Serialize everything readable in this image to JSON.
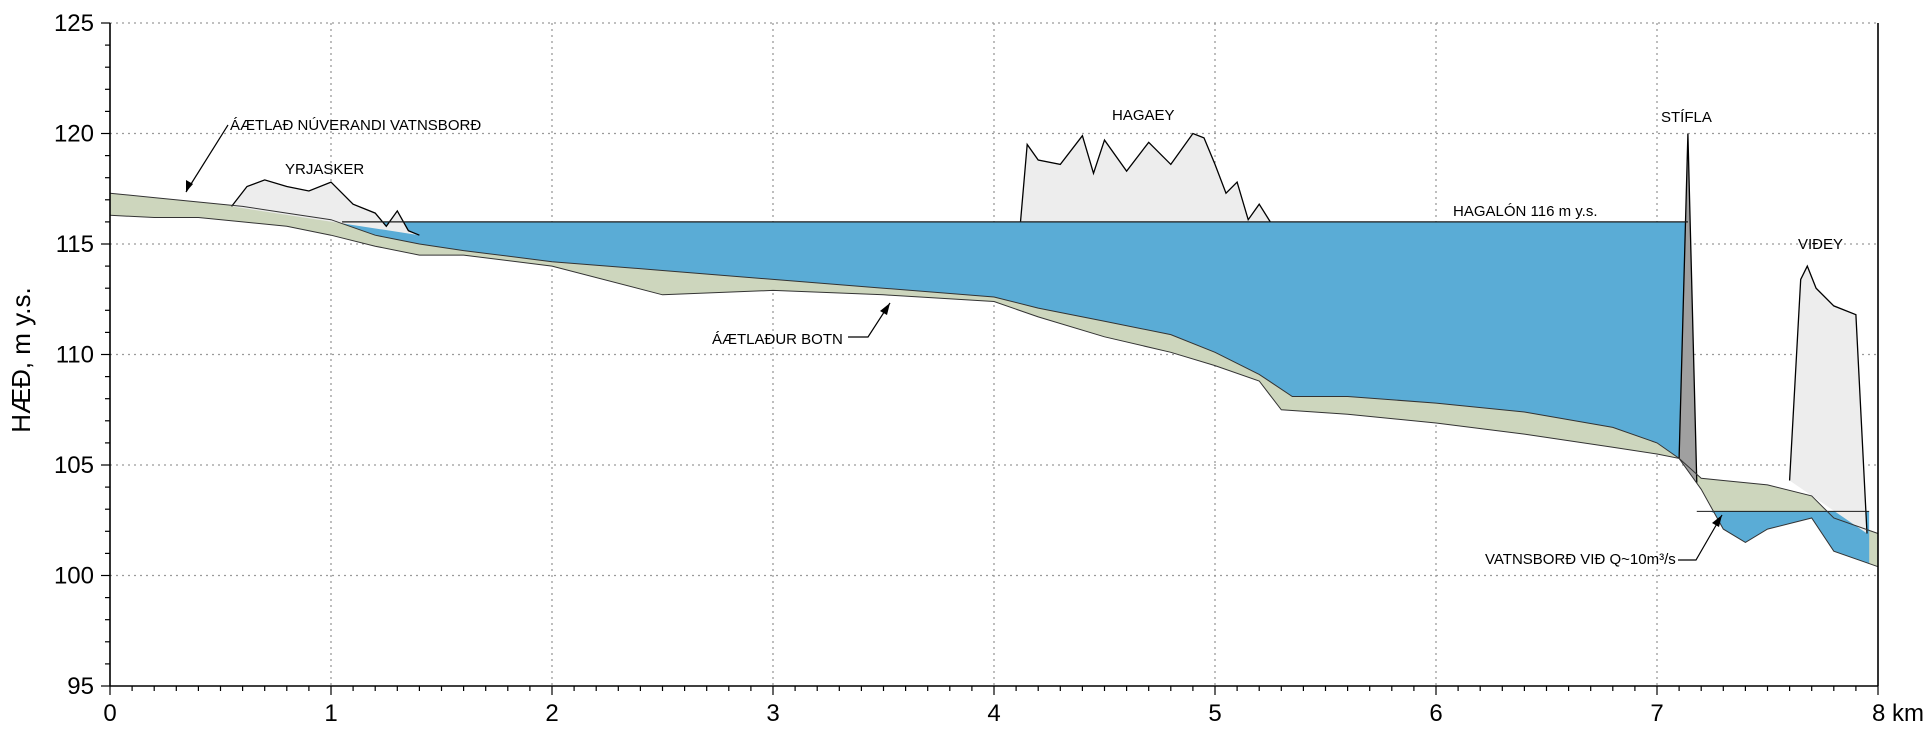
{
  "chart_data": {
    "type": "area",
    "title": "",
    "xlabel": "",
    "ylabel": "HÆÐ, m y.s.",
    "xlim": [
      0,
      8
    ],
    "ylim": [
      95,
      125
    ],
    "x_ticks": [
      0,
      1,
      2,
      3,
      4,
      5,
      6,
      7,
      8
    ],
    "x_tick_labels": [
      "0",
      "1",
      "2",
      "3",
      "4",
      "5",
      "6",
      "7",
      "8 km"
    ],
    "y_ticks": [
      95,
      100,
      105,
      110,
      115,
      120,
      125
    ],
    "y_tick_labels": [
      "95",
      "100",
      "105",
      "110",
      "115",
      "120",
      "125"
    ],
    "grid": true,
    "colors": {
      "reservoir": "#5aacd6",
      "sediment": "#cdd6bd",
      "islands": "#ededed",
      "dam": "#a0a0a0",
      "outline": "#000000"
    },
    "series": [
      {
        "name": "ÁÆTLAÐ NÚVERANDI VATNSBORÐ",
        "x": [
          0,
          0.2,
          0.4,
          0.6,
          0.8,
          1.0,
          1.2,
          1.4,
          1.6,
          2.0,
          2.5,
          3.0,
          3.5,
          4.0,
          4.2,
          4.5,
          4.8,
          5.0,
          5.2,
          5.35,
          5.6,
          6.0,
          6.4,
          6.8,
          7.0,
          7.1,
          7.2,
          7.3,
          7.5,
          7.7,
          7.8,
          8.0
        ],
        "values": [
          117.3,
          117.1,
          116.9,
          116.7,
          116.4,
          116.1,
          115.4,
          115.0,
          114.7,
          114.2,
          113.8,
          113.4,
          113.0,
          112.6,
          112.1,
          111.5,
          110.9,
          110.1,
          109.1,
          108.1,
          108.1,
          107.8,
          107.4,
          106.7,
          106.0,
          105.3,
          104.4,
          104.3,
          104.1,
          103.6,
          102.6,
          101.9
        ]
      },
      {
        "name": "ÁÆTLAÐUR BOTN",
        "x": [
          0,
          0.2,
          0.4,
          0.6,
          0.8,
          1.0,
          1.2,
          1.4,
          1.6,
          2.0,
          2.5,
          3.0,
          3.5,
          4.0,
          4.2,
          4.5,
          4.8,
          5.0,
          5.2,
          5.3,
          5.6,
          6.0,
          6.4,
          6.8,
          7.0,
          7.1,
          7.2,
          7.3,
          7.4,
          7.5,
          7.7,
          7.8,
          8.0
        ],
        "values": [
          116.3,
          116.2,
          116.2,
          116.0,
          115.8,
          115.4,
          114.9,
          114.5,
          114.5,
          114.0,
          112.7,
          112.9,
          112.7,
          112.4,
          111.7,
          110.8,
          110.1,
          109.5,
          108.8,
          107.5,
          107.3,
          106.9,
          106.4,
          105.8,
          105.5,
          105.3,
          103.9,
          102.1,
          101.5,
          102.1,
          102.6,
          101.1,
          100.4
        ]
      }
    ],
    "reservoir": {
      "name": "HAGALÓN 116 m y.s.",
      "level": 116,
      "x_start": 1.05,
      "x_end": 7.14
    },
    "downstream_water": {
      "name": "VATNSBORÐ VIÐ Q~10m³/s",
      "level": 102.9
    },
    "features": [
      {
        "name": "YRJASKER",
        "x": [
          0.55,
          0.62,
          0.7,
          0.8,
          0.9,
          1.0,
          1.05,
          1.1,
          1.2,
          1.25,
          1.3,
          1.35,
          1.4
        ],
        "values": [
          116.7,
          117.6,
          117.9,
          117.6,
          117.4,
          117.8,
          117.3,
          116.8,
          116.4,
          115.8,
          116.5,
          115.6,
          115.4
        ]
      },
      {
        "name": "HAGAEY",
        "x": [
          4.12,
          4.15,
          4.2,
          4.3,
          4.4,
          4.45,
          4.5,
          4.6,
          4.7,
          4.8,
          4.9,
          4.95,
          5.0,
          5.05,
          5.1,
          5.15,
          5.2,
          5.25
        ],
        "values": [
          116,
          119.5,
          118.8,
          118.6,
          119.9,
          118.2,
          119.7,
          118.3,
          119.6,
          118.6,
          120.0,
          119.8,
          118.6,
          117.3,
          117.8,
          116.1,
          116.8,
          116.0
        ]
      },
      {
        "name": "VIÐEY",
        "x": [
          7.6,
          7.65,
          7.68,
          7.72,
          7.8,
          7.9,
          7.95
        ],
        "values": [
          104.3,
          113.4,
          114.0,
          113.0,
          112.2,
          111.8,
          101.9
        ]
      },
      {
        "name": "STÍFLA",
        "x": [
          7.1,
          7.14,
          7.18
        ],
        "values": [
          105.3,
          120.0,
          104.2
        ]
      }
    ],
    "annotations": [
      "ÁÆTLAÐ NÚVERANDI VATNSBORÐ",
      "YRJASKER",
      "HAGAEY",
      "STÍFLA",
      "HAGALÓN 116 m y.s.",
      "VIÐEY",
      "ÁÆTLAÐUR BOTN",
      "VATNSBORÐ VIÐ Q~10m³/s"
    ]
  }
}
